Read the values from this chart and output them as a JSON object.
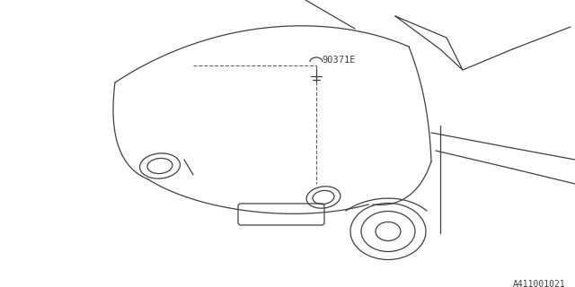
{
  "background_color": "#ffffff",
  "line_color": "#404040",
  "dashed_color": "#606060",
  "part_label": "90371E",
  "diagram_id": "A411001021",
  "figsize": [
    6.4,
    3.2
  ],
  "dpi": 100
}
